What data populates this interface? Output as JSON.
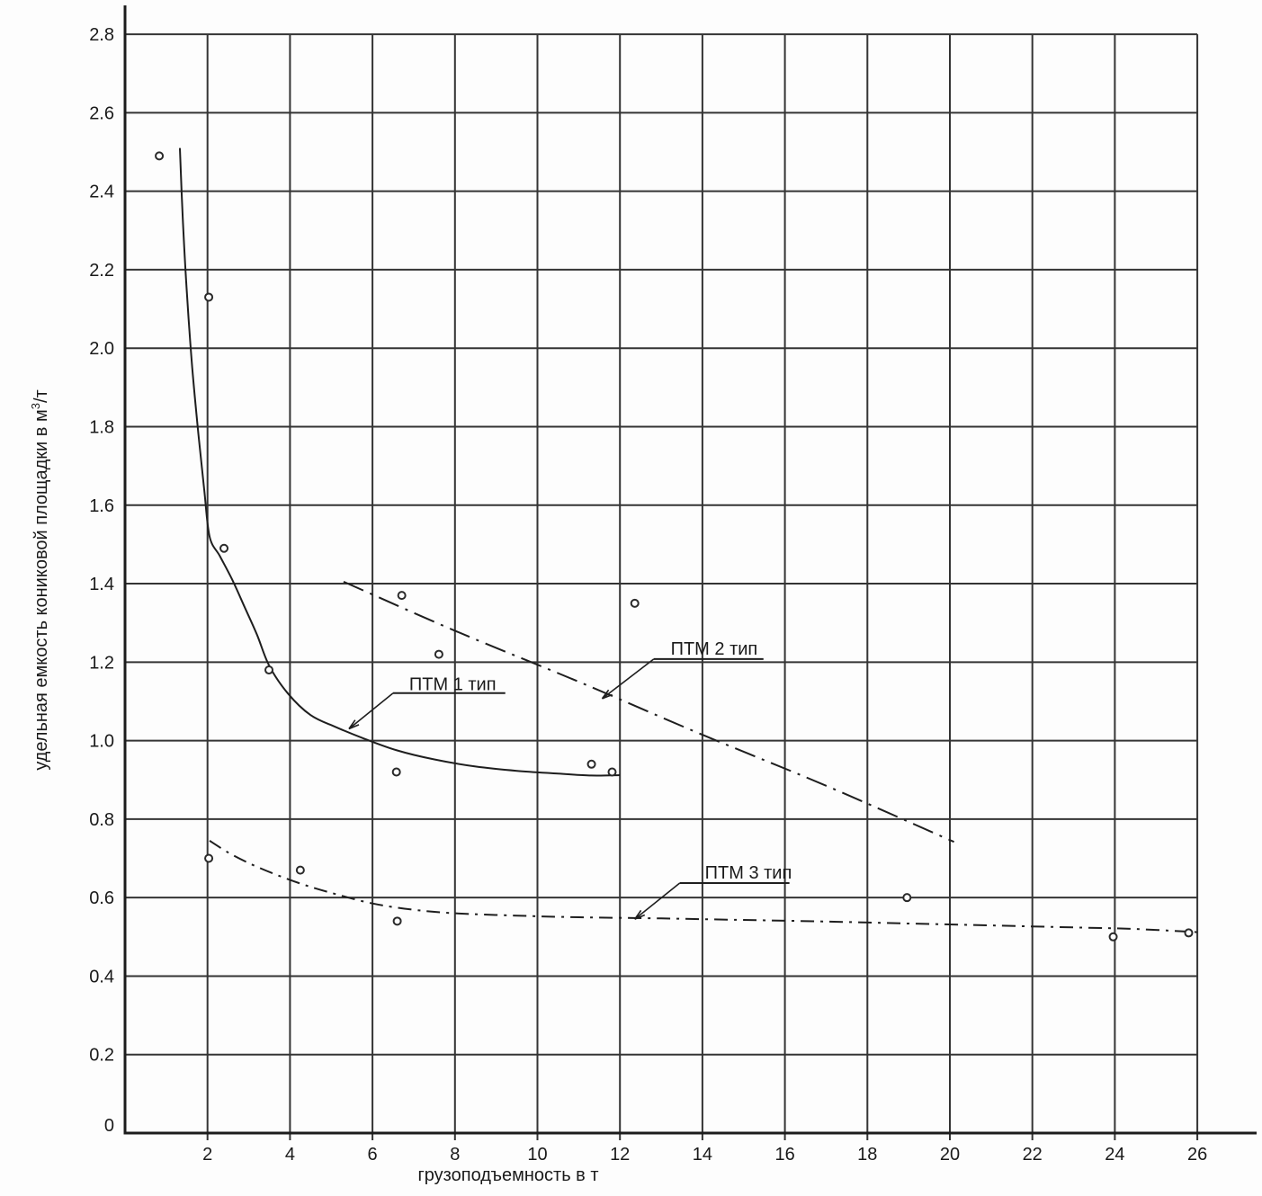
{
  "chart_data": {
    "type": "scatter",
    "title": "",
    "xlabel": "грузоподъемность в т",
    "ylabel_main": "удельная емкость кониковой площадки в м",
    "ylabel_sup": "3",
    "ylabel_tail": "/т",
    "xlim": [
      0,
      27.5
    ],
    "ylim": [
      0,
      2.8
    ],
    "grid": true,
    "x_ticks": [
      [
        2,
        "2"
      ],
      [
        4,
        "4"
      ],
      [
        6,
        "6"
      ],
      [
        8,
        "8"
      ],
      [
        10,
        "10"
      ],
      [
        12,
        "12"
      ],
      [
        14,
        "14"
      ],
      [
        16,
        "16"
      ],
      [
        18,
        "18"
      ],
      [
        20,
        "20"
      ],
      [
        22,
        "22"
      ],
      [
        24,
        "24"
      ],
      [
        26,
        "26"
      ]
    ],
    "y_ticks": [
      [
        0,
        "0"
      ],
      [
        0.2,
        "0.2"
      ],
      [
        0.4,
        "0.4"
      ],
      [
        0.6,
        "0.6"
      ],
      [
        0.8,
        "0.8"
      ],
      [
        1.0,
        "1.0"
      ],
      [
        1.2,
        "1.2"
      ],
      [
        1.4,
        "1.4"
      ],
      [
        1.6,
        "1.6"
      ],
      [
        1.8,
        "1.8"
      ],
      [
        2.0,
        "2.0"
      ],
      [
        2.2,
        "2.2"
      ],
      [
        2.4,
        "2.4"
      ],
      [
        2.6,
        "2.6"
      ],
      [
        2.8,
        "2.8"
      ]
    ],
    "colors": {
      "background": "#fdfdfd",
      "axis": "#1c1c1c",
      "grid": "#343434",
      "text": "#1a1a1a",
      "line": "#1e1e1e",
      "point_fill": "#ffffff"
    },
    "points": [
      [
        0.83,
        2.49
      ],
      [
        2.03,
        2.13
      ],
      [
        2.4,
        1.49
      ],
      [
        3.49,
        1.18
      ],
      [
        6.71,
        1.37
      ],
      [
        7.61,
        1.22
      ],
      [
        12.36,
        1.35
      ],
      [
        6.58,
        0.92
      ],
      [
        11.31,
        0.94
      ],
      [
        11.81,
        0.92
      ],
      [
        2.03,
        0.7
      ],
      [
        4.25,
        0.67
      ],
      [
        6.6,
        0.54
      ],
      [
        18.96,
        0.6
      ],
      [
        23.96,
        0.5
      ],
      [
        25.79,
        0.51
      ]
    ],
    "series": [
      {
        "name": "ПТМ 1 тип",
        "style": "solid",
        "dash": "",
        "width": 2,
        "knots": [
          [
            1.33,
            2.51
          ],
          [
            1.4,
            2.33
          ],
          [
            1.5,
            2.14
          ],
          [
            1.63,
            1.95
          ],
          [
            1.78,
            1.78
          ],
          [
            1.92,
            1.64
          ],
          [
            2.05,
            1.52
          ],
          [
            2.3,
            1.47
          ],
          [
            2.6,
            1.41
          ],
          [
            2.9,
            1.34
          ],
          [
            3.2,
            1.27
          ],
          [
            3.5,
            1.19
          ],
          [
            3.95,
            1.12
          ],
          [
            4.5,
            1.065
          ],
          [
            5.1,
            1.035
          ],
          [
            5.8,
            1.005
          ],
          [
            6.6,
            0.975
          ],
          [
            7.5,
            0.952
          ],
          [
            8.5,
            0.934
          ],
          [
            9.5,
            0.923
          ],
          [
            10.5,
            0.916
          ],
          [
            11.3,
            0.911
          ],
          [
            12.0,
            0.912
          ]
        ]
      },
      {
        "name": "ПТМ 2 тип",
        "style": "dash-dot",
        "dash": "24 8 3 8",
        "width": 2,
        "knots": [
          [
            5.3,
            1.405
          ],
          [
            8.0,
            1.28
          ],
          [
            11.0,
            1.15
          ],
          [
            14.0,
            1.015
          ],
          [
            17.0,
            0.885
          ],
          [
            20.1,
            0.742
          ]
        ]
      },
      {
        "name": "ПТМ 3 тип",
        "style": "dash-dot",
        "dash": "15 7 3 7",
        "width": 2,
        "knots": [
          [
            2.05,
            0.745
          ],
          [
            2.5,
            0.715
          ],
          [
            3.0,
            0.688
          ],
          [
            3.6,
            0.661
          ],
          [
            4.3,
            0.634
          ],
          [
            5.0,
            0.612
          ],
          [
            6.0,
            0.585
          ],
          [
            7.0,
            0.569
          ],
          [
            8.0,
            0.56
          ],
          [
            9.5,
            0.554
          ],
          [
            11.0,
            0.55
          ],
          [
            13.0,
            0.547
          ],
          [
            15.0,
            0.543
          ],
          [
            17.0,
            0.539
          ],
          [
            19.0,
            0.534
          ],
          [
            21.0,
            0.529
          ],
          [
            23.0,
            0.524
          ],
          [
            24.5,
            0.52
          ],
          [
            26.0,
            0.512
          ]
        ]
      }
    ],
    "annotations": [
      {
        "label": "ПТМ 1 тип",
        "label_anchor": [
          6.89,
          1.128
        ],
        "underline": {
          "from_x": 6.5,
          "to_x": 9.22,
          "y": 1.121
        },
        "arrow_to": [
          5.43,
          1.03
        ]
      },
      {
        "label": "ПТМ 2 тип",
        "label_anchor": [
          13.23,
          1.219
        ],
        "underline": {
          "from_x": 12.82,
          "to_x": 15.48,
          "y": 1.208
        },
        "arrow_to": [
          11.57,
          1.107
        ]
      },
      {
        "label": "ПТМ 3 тип",
        "label_anchor": [
          14.06,
          0.649
        ],
        "underline": {
          "from_x": 13.45,
          "to_x": 16.11,
          "y": 0.637
        },
        "arrow_to": [
          12.36,
          0.545
        ]
      }
    ],
    "legend_position": "none"
  }
}
